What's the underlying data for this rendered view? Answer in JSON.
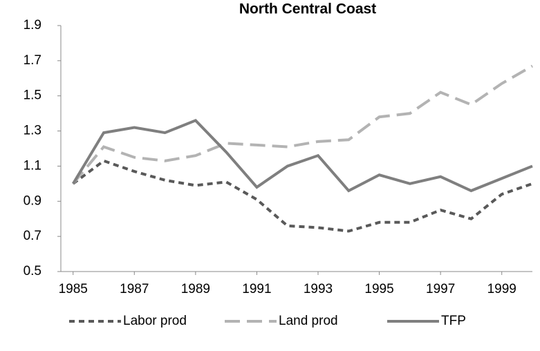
{
  "chart_data": {
    "type": "line",
    "title": "North Central Coast",
    "x": [
      1985,
      1986,
      1987,
      1988,
      1989,
      1990,
      1991,
      1992,
      1993,
      1994,
      1995,
      1996,
      1997,
      1998,
      1999,
      2000
    ],
    "xlim": [
      1984.6,
      2000
    ],
    "xticks": [
      1985,
      1987,
      1989,
      1991,
      1993,
      1995,
      1997,
      1999
    ],
    "ylim": [
      0.5,
      1.9
    ],
    "yticks": [
      0.5,
      0.7,
      0.9,
      1.1,
      1.3,
      1.5,
      1.7,
      1.9
    ],
    "grid": false,
    "legend": "bottom",
    "series": [
      {
        "name": "Labor prod",
        "color": "#595959",
        "dash": "short",
        "values": [
          1.0,
          1.13,
          1.07,
          1.02,
          0.99,
          1.01,
          0.91,
          0.76,
          0.75,
          0.73,
          0.78,
          0.78,
          0.85,
          0.8,
          0.94,
          1.0
        ]
      },
      {
        "name": "Land prod",
        "color": "#b3b3b3",
        "dash": "long",
        "values": [
          1.0,
          1.21,
          1.15,
          1.13,
          1.16,
          1.23,
          1.22,
          1.21,
          1.24,
          1.25,
          1.38,
          1.4,
          1.52,
          1.45,
          1.57,
          1.67
        ]
      },
      {
        "name": "TFP",
        "color": "#7f7f7f",
        "dash": "solid",
        "values": [
          1.0,
          1.29,
          1.32,
          1.29,
          1.36,
          1.18,
          0.98,
          1.1,
          1.16,
          0.96,
          1.05,
          1.0,
          1.04,
          0.96,
          1.03,
          1.1
        ]
      }
    ]
  }
}
